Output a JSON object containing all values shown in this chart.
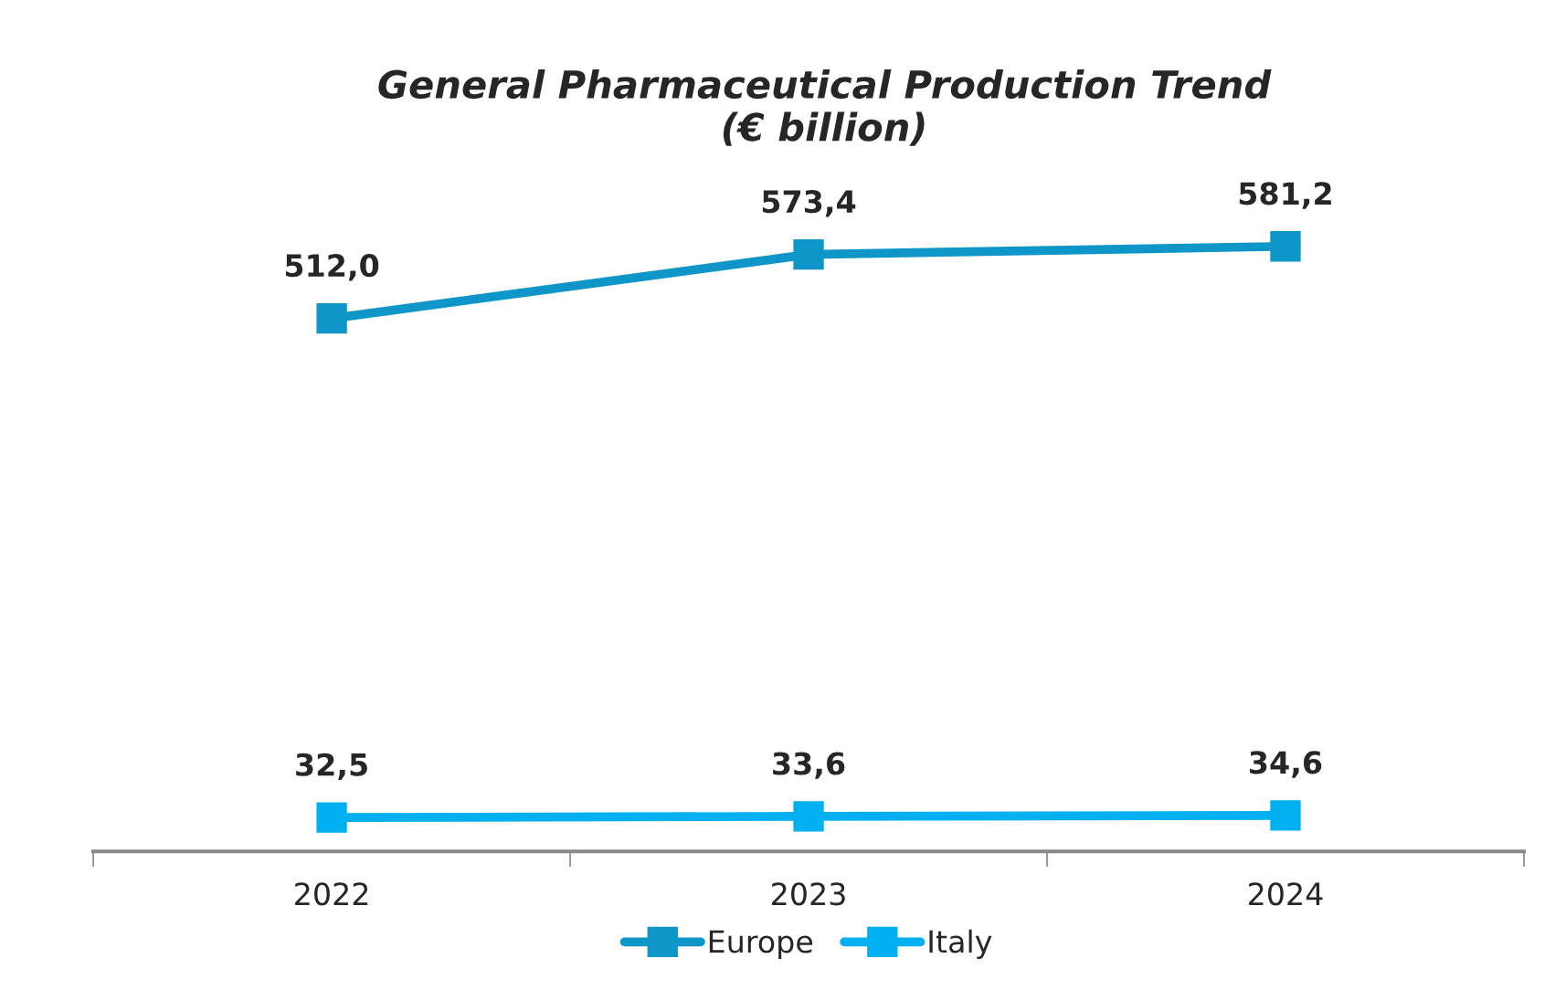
{
  "chart_data": {
    "type": "line",
    "title": "General Pharmaceutical Production Trend\n(€ billion)",
    "categories": [
      "2022",
      "2023",
      "2024"
    ],
    "series": [
      {
        "name": "Europe",
        "color": "#0e96c8",
        "values": [
          512.0,
          573.4,
          581.2
        ],
        "value_labels": [
          "512,0",
          "573,4",
          "581,2"
        ]
      },
      {
        "name": "Italy",
        "color": "#00b0f0",
        "values": [
          32.5,
          33.6,
          34.6
        ],
        "value_labels": [
          "32,5",
          "33,6",
          "34,6"
        ]
      }
    ],
    "marker": "square",
    "line_style": "solid",
    "legend": "bottom",
    "grid": false,
    "tick_labels": "x"
  }
}
